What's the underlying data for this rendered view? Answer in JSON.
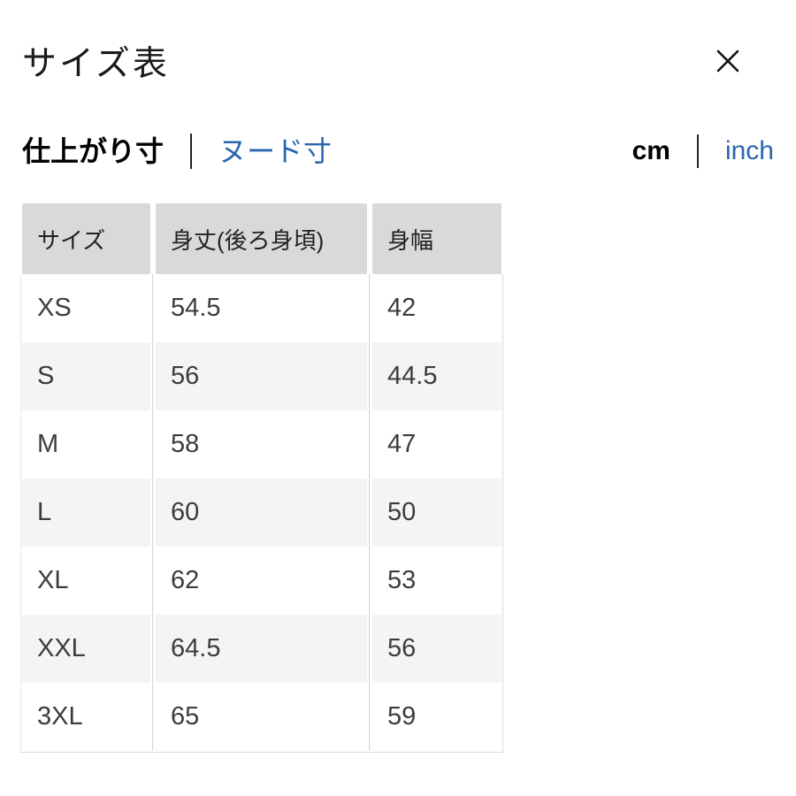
{
  "modal": {
    "title": "サイズ表",
    "close_icon": "close-x"
  },
  "tabs": {
    "measurement": [
      {
        "label": "仕上がり寸",
        "selected": true
      },
      {
        "label": "ヌード寸",
        "selected": false
      }
    ],
    "units": [
      {
        "label": "cm",
        "selected": true
      },
      {
        "label": "inch",
        "selected": false
      }
    ]
  },
  "size_table": {
    "columns": [
      "サイズ",
      "身丈(後ろ身頃)",
      "身幅"
    ],
    "rows": [
      [
        "XS",
        "54.5",
        "42"
      ],
      [
        "S",
        "56",
        "44.5"
      ],
      [
        "M",
        "58",
        "47"
      ],
      [
        "L",
        "60",
        "50"
      ],
      [
        "XL",
        "62",
        "53"
      ],
      [
        "XXL",
        "64.5",
        "56"
      ],
      [
        "3XL",
        "65",
        "59"
      ]
    ]
  },
  "colors": {
    "link_blue": "#2a66b0",
    "header_cell_bg": "#d9d9d9",
    "alt_row_bg": "#f4f4f4",
    "text_primary": "#1a1a1a",
    "divider_line": "#d4d4d4"
  }
}
